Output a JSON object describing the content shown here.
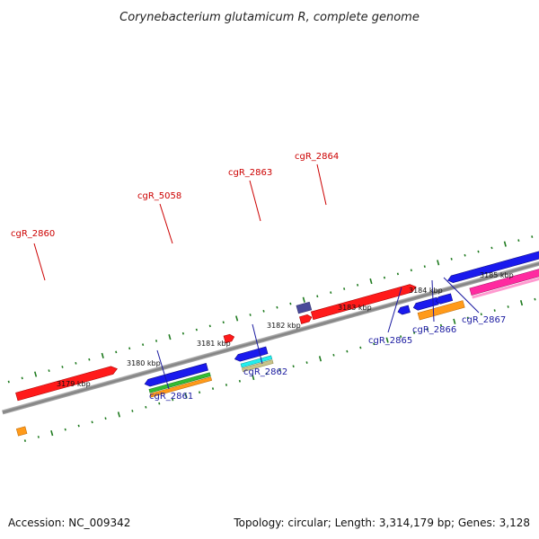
{
  "title": "Corynebacterium glutamicum R, complete genome",
  "footer": {
    "accession": "Accession: NC_009342",
    "summary": "Topology: circular; Length: 3,314,179 bp; Genes: 3,128"
  },
  "colors": {
    "axis": "#8a8a8a",
    "tick": "#1e7a1e",
    "red": "#ff1a1a",
    "blue": "#1a1aee",
    "green": "#33bb33",
    "orange": "#ff9a1a",
    "magenta": "#ff2aa0",
    "cyan": "#22eeee",
    "khaki": "#c8c48a",
    "purple": "#4a4a99",
    "label_red": "#cc0000",
    "label_blue": "#1a1aa0"
  },
  "kbp_labels": [
    {
      "name": "kbp-label-3179",
      "text": "3179 kbp"
    },
    {
      "name": "kbp-label-3180",
      "text": "3180 kbp"
    },
    {
      "name": "kbp-label-3181",
      "text": "3181 kbp"
    },
    {
      "name": "kbp-label-3182",
      "text": "3182 kbp"
    },
    {
      "name": "kbp-label-3183",
      "text": "3183 kbp"
    },
    {
      "name": "kbp-label-3184",
      "text": "3184 kbp"
    },
    {
      "name": "kbp-label-3185",
      "text": "3185 kbp"
    }
  ],
  "genes_upper": [
    {
      "name": "gene-label-cgR_2860",
      "text": "cgR_2860"
    },
    {
      "name": "gene-label-cgR_5058",
      "text": "cgR_5058"
    },
    {
      "name": "gene-label-cgR_2863",
      "text": "cgR_2863"
    },
    {
      "name": "gene-label-cgR_2864",
      "text": "cgR_2864"
    }
  ],
  "genes_lower": [
    {
      "name": "gene-label-cgR_2861",
      "text": "cgR_2861"
    },
    {
      "name": "gene-label-cgR_2862",
      "text": "cgR_2862"
    },
    {
      "name": "gene-label-cgR_2865",
      "text": "cgR_2865"
    },
    {
      "name": "gene-label-cgR_2866",
      "text": "cgR_2866"
    },
    {
      "name": "gene-label-cgR_2867",
      "text": "cgR_2867"
    }
  ]
}
